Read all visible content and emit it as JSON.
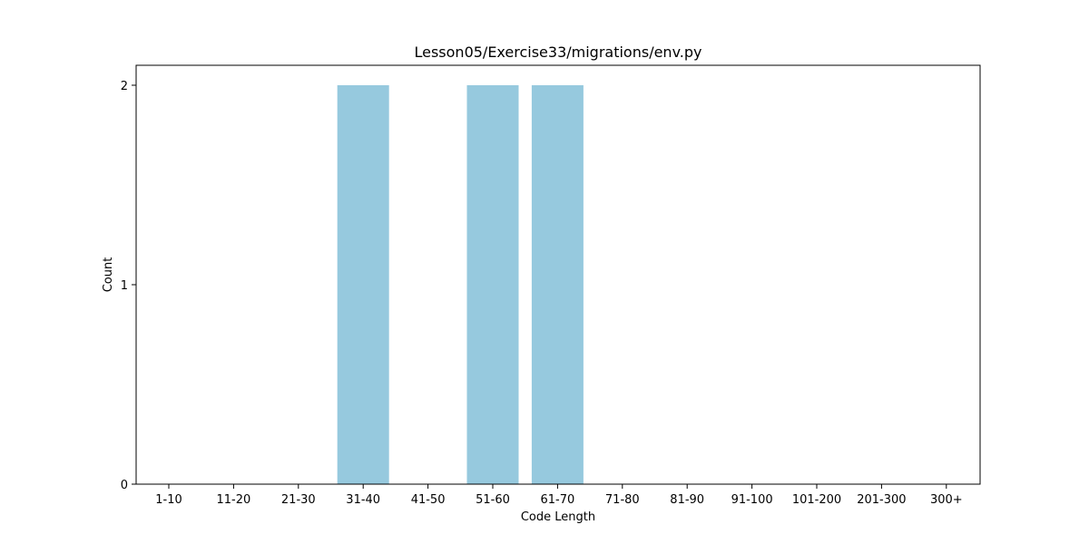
{
  "chart_data": {
    "type": "bar",
    "title": "Lesson05/Exercise33/migrations/env.py",
    "xlabel": "Code Length",
    "ylabel": "Count",
    "categories": [
      "1-10",
      "11-20",
      "21-30",
      "31-40",
      "41-50",
      "51-60",
      "61-70",
      "71-80",
      "81-90",
      "91-100",
      "101-200",
      "201-300",
      "300+"
    ],
    "values": [
      0,
      0,
      0,
      2,
      0,
      2,
      2,
      0,
      0,
      0,
      0,
      0,
      0
    ],
    "yticks": [
      "0",
      "1",
      "2"
    ],
    "ylim": [
      0,
      2.1
    ],
    "bar_color": "#96c9de",
    "grid": false
  }
}
